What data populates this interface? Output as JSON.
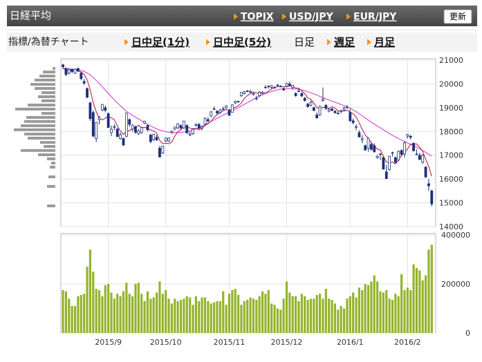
{
  "header": {
    "title": "日経平均",
    "links": [
      "TOPIX",
      "USD/JPY",
      "EUR/JPY"
    ],
    "button": "更新"
  },
  "tabs": {
    "label": "指標/為替チャート",
    "items": [
      "日中足(1分)",
      "日中足(5分)",
      "日足",
      "週足",
      "月足"
    ],
    "active": 2
  },
  "chart_data": {
    "type": "candlestick",
    "categories": [
      null,
      null,
      null,
      null,
      null,
      null,
      null,
      null,
      null,
      null,
      null,
      null,
      null,
      null,
      null,
      "2015/9",
      null,
      null,
      null,
      null,
      null,
      null,
      null,
      null,
      null,
      null,
      null,
      null,
      null,
      null,
      null,
      null,
      null,
      null,
      "2015/10",
      null,
      null,
      null,
      null,
      null,
      null,
      null,
      null,
      null,
      null,
      null,
      null,
      null,
      null,
      null,
      null,
      null,
      null,
      null,
      null,
      "2015/11",
      null,
      null,
      null,
      null,
      null,
      null,
      null,
      null,
      null,
      null,
      null,
      null,
      null,
      null,
      null,
      null,
      null,
      null,
      "2015/12",
      null,
      null,
      null,
      null,
      null,
      null,
      null,
      null,
      null,
      null,
      null,
      null,
      null,
      null,
      null,
      null,
      null,
      null,
      null,
      null,
      "2016/1",
      null,
      null,
      null,
      null,
      null,
      null,
      null,
      null,
      null,
      null,
      null,
      null,
      null,
      null,
      null,
      null,
      null,
      null,
      "2016/2",
      null,
      null,
      null,
      null,
      null,
      null,
      null,
      null
    ],
    "ohlc": [
      [
        20800,
        20850,
        20650,
        20720
      ],
      [
        20650,
        20700,
        20330,
        20392
      ],
      [
        20450,
        20650,
        20400,
        20595
      ],
      [
        20600,
        20650,
        20450,
        20519
      ],
      [
        20450,
        20650,
        20420,
        20620
      ],
      [
        20650,
        20680,
        20500,
        20554
      ],
      [
        20450,
        20500,
        20150,
        20222
      ],
      [
        20100,
        20200,
        19950,
        20033
      ],
      [
        19800,
        19850,
        19400,
        19435
      ],
      [
        19200,
        19250,
        18450,
        18540
      ],
      [
        18800,
        18900,
        17750,
        17806
      ],
      [
        17700,
        18400,
        17550,
        18376
      ],
      [
        18500,
        18650,
        18300,
        18574
      ],
      [
        18900,
        19150,
        18850,
        19136
      ],
      [
        19000,
        19100,
        18800,
        18890
      ],
      [
        18750,
        18800,
        18150,
        18165
      ],
      [
        17950,
        18250,
        17800,
        18095
      ],
      [
        18200,
        18300,
        18050,
        18182
      ],
      [
        18100,
        18150,
        17750,
        17792
      ],
      [
        17700,
        17950,
        17650,
        17860
      ],
      [
        17700,
        17750,
        17400,
        17427
      ],
      [
        17800,
        18800,
        17750,
        18770
      ],
      [
        18500,
        18550,
        18200,
        18299
      ],
      [
        18100,
        18300,
        18000,
        18264
      ],
      [
        18200,
        18250,
        17900,
        17965
      ],
      [
        17900,
        18100,
        17850,
        18026
      ],
      [
        17950,
        18200,
        17900,
        18171
      ],
      [
        18350,
        18450,
        18300,
        18432
      ],
      [
        18250,
        18300,
        18000,
        18070
      ],
      [
        17850,
        17900,
        17500,
        17571
      ],
      [
        17650,
        17900,
        17600,
        17880
      ],
      [
        17750,
        17850,
        17600,
        17645
      ],
      [
        17300,
        17400,
        16900,
        16930
      ],
      [
        17100,
        17400,
        17050,
        17388
      ],
      [
        17600,
        17750,
        17550,
        17722
      ],
      [
        17600,
        17750,
        17550,
        17725
      ],
      [
        17950,
        18050,
        17900,
        18005
      ],
      [
        18100,
        18200,
        18050,
        18186
      ],
      [
        18150,
        18350,
        18100,
        18322
      ],
      [
        18250,
        18300,
        18100,
        18141
      ],
      [
        18150,
        18450,
        18100,
        18438
      ],
      [
        18250,
        18300,
        17900,
        17940
      ],
      [
        17850,
        18000,
        17800,
        17891
      ],
      [
        17900,
        18150,
        17850,
        18097
      ],
      [
        18250,
        18350,
        18200,
        18291
      ],
      [
        18300,
        18350,
        18100,
        18131
      ],
      [
        18150,
        18250,
        18050,
        18207
      ],
      [
        18300,
        18600,
        18250,
        18554
      ],
      [
        18500,
        18600,
        18400,
        18435
      ],
      [
        18650,
        18850,
        18600,
        18825
      ],
      [
        18950,
        19050,
        18900,
        18947
      ],
      [
        18850,
        18900,
        18700,
        18777
      ],
      [
        18800,
        18950,
        18750,
        18903
      ],
      [
        18950,
        19050,
        18900,
        18935
      ],
      [
        19000,
        19100,
        18950,
        19083
      ],
      [
        18900,
        18950,
        18650,
        18683
      ],
      [
        18800,
        19150,
        18800,
        19116
      ],
      [
        19200,
        19300,
        19150,
        19265
      ],
      [
        19250,
        19300,
        19200,
        19265
      ],
      [
        19500,
        19650,
        19450,
        19642
      ],
      [
        19600,
        19700,
        19550,
        19671
      ],
      [
        19700,
        19750,
        19650,
        19697
      ],
      [
        19650,
        19750,
        19600,
        19691
      ],
      [
        19550,
        19650,
        19500,
        19596
      ],
      [
        19400,
        19500,
        19300,
        19394
      ],
      [
        19500,
        19700,
        19450,
        19649
      ],
      [
        19600,
        19700,
        19550,
        19649
      ],
      [
        19850,
        19950,
        19800,
        19859
      ],
      [
        19900,
        19950,
        19800,
        19879
      ],
      [
        19850,
        19950,
        19800,
        19924
      ],
      [
        19850,
        19900,
        19800,
        19847
      ],
      [
        19950,
        19990,
        19900,
        19944
      ],
      [
        19900,
        19950,
        19850,
        19883
      ],
      [
        19800,
        19850,
        19700,
        19747
      ],
      [
        19900,
        20050,
        19850,
        20012
      ],
      [
        20000,
        20100,
        19900,
        19938
      ],
      [
        19850,
        19950,
        19750,
        19939
      ],
      [
        19600,
        19650,
        19450,
        19504
      ],
      [
        19700,
        19800,
        19650,
        19698
      ],
      [
        19600,
        19650,
        19450,
        19492
      ],
      [
        19400,
        19450,
        19250,
        19301
      ],
      [
        19150,
        19200,
        19000,
        19046
      ],
      [
        19100,
        19300,
        19050,
        19230
      ],
      [
        19000,
        19050,
        18850,
        18883
      ],
      [
        18700,
        18800,
        18550,
        18565
      ],
      [
        18700,
        19100,
        18650,
        19050
      ],
      [
        19300,
        19850,
        19250,
        19353
      ],
      [
        19100,
        19150,
        18900,
        18986
      ],
      [
        18850,
        19000,
        18800,
        18916
      ],
      [
        18950,
        19000,
        18850,
        18886
      ],
      [
        18850,
        18900,
        18750,
        18789
      ],
      [
        18750,
        18850,
        18700,
        18769
      ],
      [
        18850,
        18900,
        18750,
        18873
      ],
      [
        18900,
        19050,
        18850,
        18982
      ],
      [
        19000,
        19100,
        18950,
        19033
      ],
      [
        18800,
        18950,
        18400,
        18450
      ],
      [
        18450,
        18550,
        18300,
        18374
      ],
      [
        18200,
        18300,
        18050,
        18191
      ],
      [
        17950,
        18050,
        17750,
        17767
      ],
      [
        17650,
        17850,
        17500,
        17697
      ],
      [
        17400,
        17450,
        17200,
        17218
      ],
      [
        17300,
        17750,
        17150,
        17715
      ],
      [
        17450,
        17550,
        17200,
        17240
      ],
      [
        17400,
        17500,
        17100,
        17147
      ],
      [
        16900,
        17000,
        16850,
        16955
      ],
      [
        17050,
        17100,
        16800,
        17048
      ],
      [
        16900,
        16950,
        16400,
        16416
      ],
      [
        16300,
        16600,
        16000,
        16017
      ],
      [
        16400,
        16950,
        16350,
        16958
      ],
      [
        17100,
        17150,
        16950,
        17110
      ],
      [
        16900,
        16950,
        16650,
        16708
      ],
      [
        16800,
        17200,
        16750,
        17163
      ],
      [
        17200,
        17250,
        16950,
        17041
      ],
      [
        17050,
        17600,
        16900,
        17518
      ],
      [
        17800,
        17900,
        17700,
        17865
      ],
      [
        17800,
        17850,
        17650,
        17750
      ],
      [
        17500,
        17550,
        17150,
        17191
      ],
      [
        17050,
        17250,
        17000,
        17044
      ],
      [
        17000,
        17100,
        16800,
        16819
      ],
      [
        16700,
        17050,
        16650,
        17004
      ],
      [
        16500,
        16550,
        16050,
        16085
      ],
      [
        15800,
        16000,
        15500,
        15713
      ],
      [
        15500,
        15550,
        14850,
        14952
      ]
    ],
    "candle_color": "#1c2f78",
    "series": [
      {
        "color": "#d030d0",
        "values": [
          20650,
          20640,
          20630,
          20620,
          20610,
          20590,
          20560,
          20520,
          20460,
          20380,
          20270,
          20150,
          20020,
          19880,
          19740,
          19600,
          19460,
          19330,
          19200,
          19080,
          18960,
          18850,
          18760,
          18680,
          18600,
          18520,
          18450,
          18380,
          18300,
          18230,
          18170,
          18110,
          18060,
          18020,
          17990,
          17970,
          17960,
          17950,
          17950,
          17960,
          17970,
          17990,
          18020,
          18060,
          18110,
          18160,
          18220,
          18280,
          18350,
          18420,
          18490,
          18560,
          18620,
          18690,
          18750,
          18810,
          18870,
          18940,
          19000,
          19070,
          19140,
          19210,
          19280,
          19350,
          19420,
          19480,
          19540,
          19590,
          19640,
          19680,
          19720,
          19750,
          19780,
          19790,
          19800,
          19800,
          19800,
          19790,
          19770,
          19740,
          19710,
          19670,
          19630,
          19580,
          19530,
          19470,
          19420,
          19370,
          19320,
          19270,
          19230,
          19180,
          19130,
          19090,
          19040,
          18980,
          18910,
          18830,
          18750,
          18660,
          18570,
          18480,
          18390,
          18310,
          18230,
          18150,
          18070,
          17990,
          17910,
          17840,
          17770,
          17700,
          17640,
          17580,
          17520,
          17460,
          17400,
          17340,
          17270,
          17200,
          17120,
          17040,
          16960
        ]
      },
      {
        "color": "#b0103a",
        "values": [
          20650,
          20600,
          20580,
          20560,
          20569,
          20536,
          20502,
          20390,
          20173,
          19757,
          19207,
          18838,
          18546,
          18486,
          18556,
          18628,
          18572,
          18494,
          18225,
          18019,
          17871,
          18006,
          18030,
          18124,
          18145,
          18265,
          18145,
          18172,
          18133,
          18054,
          18025,
          17920,
          17619,
          17483,
          17513,
          17482,
          17554,
          17805,
          17992,
          18076,
          18218,
          18205,
          18146,
          18101,
          18131,
          18070,
          18123,
          18256,
          18324,
          18430,
          18594,
          18708,
          18777,
          18877,
          18929,
          18876,
          18944,
          19016,
          19082,
          19194,
          19392,
          19508,
          19593,
          19659,
          19610,
          19605,
          19596,
          19629,
          19686,
          19792,
          19832,
          19891,
          19895,
          19869,
          19887,
          19905,
          19904,
          19828,
          19818,
          19714,
          19587,
          19408,
          19353,
          19190,
          19005,
          18955,
          19016,
          18967,
          18974,
          19038,
          18986,
          18869,
          18847,
          18860,
          18889,
          18821,
          18742,
          18606,
          18363,
          18096,
          17849,
          17718,
          17527,
          17403,
          17255,
          17221,
          16961,
          16717,
          16679,
          16710,
          16642,
          16791,
          16996,
          17108,
          17259,
          17467,
          17473,
          17474,
          17334,
          17162,
          16829,
          16533,
          16115
        ]
      }
    ],
    "ylim": [
      14000,
      21000
    ],
    "yticks": [
      14000,
      15000,
      16000,
      17000,
      18000,
      19000,
      20000,
      21000
    ],
    "grid": true,
    "volume": {
      "color": "#93b42c",
      "ylim": [
        0,
        400000
      ],
      "yticks": [
        0,
        200000,
        400000
      ],
      "values": [
        175000,
        170000,
        140000,
        110000,
        110000,
        150000,
        155000,
        160000,
        270000,
        340000,
        250000,
        180000,
        175000,
        150000,
        195000,
        200000,
        165000,
        140000,
        160000,
        150000,
        170000,
        205000,
        160000,
        150000,
        200000,
        205000,
        160000,
        130000,
        170000,
        140000,
        145000,
        165000,
        210000,
        160000,
        175000,
        140000,
        120000,
        140000,
        130000,
        135000,
        140000,
        150000,
        145000,
        115000,
        150000,
        130000,
        145000,
        145000,
        130000,
        120000,
        125000,
        130000,
        130000,
        170000,
        115000,
        160000,
        175000,
        180000,
        155000,
        115000,
        130000,
        135000,
        145000,
        140000,
        135000,
        150000,
        170000,
        160000,
        175000,
        120000,
        115000,
        100000,
        95000,
        140000,
        210000,
        165000,
        150000,
        150000,
        130000,
        160000,
        150000,
        135000,
        140000,
        140000,
        155000,
        160000,
        140000,
        180000,
        140000,
        135000,
        120000,
        95000,
        110000,
        100000,
        140000,
        150000,
        165000,
        145000,
        185000,
        175000,
        200000,
        195000,
        210000,
        235000,
        210000,
        170000,
        165000,
        175000,
        140000,
        135000,
        160000,
        150000,
        240000,
        175000,
        185000,
        175000,
        280000,
        265000,
        255000,
        215000,
        235000,
        340000,
        360000
      ]
    },
    "volume_profile": {
      "color": "#9a9a9a",
      "prices": [
        20650,
        20500,
        20330,
        20160,
        19980,
        19810,
        19630,
        19460,
        19290,
        19110,
        18940,
        18760,
        18590,
        18420,
        18240,
        18070,
        17890,
        17720,
        17540,
        17370,
        17200,
        17020,
        16850,
        16670,
        16500,
        16090,
        15690,
        14870
      ],
      "values": [
        4,
        18,
        23,
        30,
        36,
        30,
        20,
        25,
        20,
        40,
        58,
        20,
        42,
        45,
        50,
        60,
        45,
        40,
        22,
        17,
        50,
        25,
        12,
        6,
        8,
        10,
        12,
        12
      ]
    }
  }
}
